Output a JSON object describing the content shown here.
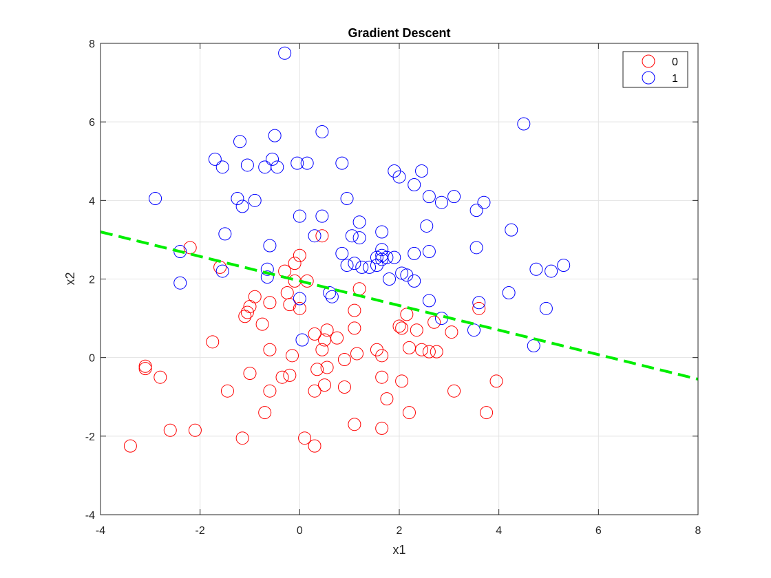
{
  "chart_data": {
    "type": "scatter",
    "title": "Gradient Descent",
    "xlabel": "x1",
    "ylabel": "x2",
    "xlim": [
      -4,
      8
    ],
    "ylim": [
      -4,
      8
    ],
    "xticks": [
      "-4",
      "-2",
      "0",
      "2",
      "4",
      "6",
      "8"
    ],
    "yticks": [
      "-4",
      "-2",
      "0",
      "2",
      "4",
      "6",
      "8"
    ],
    "grid": true,
    "legend_position": "top-right",
    "series": [
      {
        "name": "0",
        "color": "#ff0000",
        "marker": "circle",
        "points": [
          [
            -2.2,
            2.8
          ],
          [
            -1.6,
            2.3
          ],
          [
            -0.3,
            2.2
          ],
          [
            -0.1,
            2.4
          ],
          [
            0.0,
            2.6
          ],
          [
            0.45,
            3.1
          ],
          [
            -0.1,
            1.95
          ],
          [
            0.15,
            1.95
          ],
          [
            -0.25,
            1.65
          ],
          [
            -0.9,
            1.55
          ],
          [
            -0.6,
            1.4
          ],
          [
            -0.2,
            1.35
          ],
          [
            0.0,
            1.25
          ],
          [
            -1.0,
            1.3
          ],
          [
            -1.05,
            1.15
          ],
          [
            -1.1,
            1.05
          ],
          [
            -0.75,
            0.85
          ],
          [
            1.1,
            1.2
          ],
          [
            1.2,
            1.75
          ],
          [
            2.15,
            1.1
          ],
          [
            3.6,
            1.25
          ],
          [
            2.0,
            0.8
          ],
          [
            2.05,
            0.75
          ],
          [
            2.35,
            0.7
          ],
          [
            2.7,
            0.9
          ],
          [
            3.05,
            0.65
          ],
          [
            1.1,
            0.75
          ],
          [
            0.55,
            0.7
          ],
          [
            0.3,
            0.6
          ],
          [
            0.75,
            0.5
          ],
          [
            0.5,
            0.45
          ],
          [
            0.45,
            0.2
          ],
          [
            -1.75,
            0.4
          ],
          [
            -0.6,
            0.2
          ],
          [
            -0.15,
            0.05
          ],
          [
            0.9,
            -0.05
          ],
          [
            1.15,
            0.1
          ],
          [
            1.55,
            0.2
          ],
          [
            1.65,
            0.05
          ],
          [
            2.2,
            0.25
          ],
          [
            2.45,
            0.2
          ],
          [
            2.6,
            0.15
          ],
          [
            2.75,
            0.15
          ],
          [
            0.55,
            -0.25
          ],
          [
            0.35,
            -0.3
          ],
          [
            -1.0,
            -0.4
          ],
          [
            -0.35,
            -0.5
          ],
          [
            -0.2,
            -0.45
          ],
          [
            -3.1,
            -0.22
          ],
          [
            -3.1,
            -0.28
          ],
          [
            -2.8,
            -0.5
          ],
          [
            1.65,
            -0.5
          ],
          [
            2.05,
            -0.6
          ],
          [
            3.95,
            -0.6
          ],
          [
            0.5,
            -0.7
          ],
          [
            0.9,
            -0.75
          ],
          [
            -1.45,
            -0.85
          ],
          [
            -0.6,
            -0.85
          ],
          [
            0.3,
            -0.85
          ],
          [
            3.1,
            -0.85
          ],
          [
            1.75,
            -1.05
          ],
          [
            -0.7,
            -1.4
          ],
          [
            2.2,
            -1.4
          ],
          [
            3.75,
            -1.4
          ],
          [
            1.1,
            -1.7
          ],
          [
            1.65,
            -1.8
          ],
          [
            -2.6,
            -1.85
          ],
          [
            -2.1,
            -1.85
          ],
          [
            -1.15,
            -2.05
          ],
          [
            0.1,
            -2.05
          ],
          [
            -3.4,
            -2.25
          ],
          [
            0.3,
            -2.25
          ]
        ]
      },
      {
        "name": "1",
        "color": "#0000ff",
        "marker": "circle",
        "points": [
          [
            -0.3,
            7.75
          ],
          [
            4.5,
            5.95
          ],
          [
            0.45,
            5.75
          ],
          [
            -0.5,
            5.65
          ],
          [
            -1.2,
            5.5
          ],
          [
            -1.7,
            5.05
          ],
          [
            -0.55,
            5.05
          ],
          [
            -1.55,
            4.85
          ],
          [
            -1.05,
            4.9
          ],
          [
            -0.7,
            4.85
          ],
          [
            -0.45,
            4.85
          ],
          [
            -0.05,
            4.95
          ],
          [
            0.15,
            4.95
          ],
          [
            0.85,
            4.95
          ],
          [
            1.9,
            4.75
          ],
          [
            2.45,
            4.75
          ],
          [
            2.0,
            4.6
          ],
          [
            2.3,
            4.4
          ],
          [
            -2.9,
            4.05
          ],
          [
            -1.25,
            4.05
          ],
          [
            -0.9,
            4.0
          ],
          [
            -1.15,
            3.85
          ],
          [
            0.95,
            4.05
          ],
          [
            2.6,
            4.1
          ],
          [
            2.85,
            3.95
          ],
          [
            3.1,
            4.1
          ],
          [
            3.7,
            3.95
          ],
          [
            3.55,
            3.75
          ],
          [
            0.0,
            3.6
          ],
          [
            0.45,
            3.6
          ],
          [
            1.2,
            3.45
          ],
          [
            2.55,
            3.35
          ],
          [
            4.25,
            3.25
          ],
          [
            -1.5,
            3.15
          ],
          [
            0.3,
            3.1
          ],
          [
            1.05,
            3.1
          ],
          [
            1.2,
            3.05
          ],
          [
            1.65,
            3.2
          ],
          [
            -0.6,
            2.85
          ],
          [
            3.55,
            2.8
          ],
          [
            2.6,
            2.7
          ],
          [
            2.3,
            2.65
          ],
          [
            1.65,
            2.75
          ],
          [
            1.65,
            2.6
          ],
          [
            1.65,
            2.5
          ],
          [
            1.55,
            2.55
          ],
          [
            1.75,
            2.55
          ],
          [
            1.9,
            2.55
          ],
          [
            0.85,
            2.65
          ],
          [
            1.55,
            2.35
          ],
          [
            1.4,
            2.3
          ],
          [
            1.25,
            2.3
          ],
          [
            1.1,
            2.4
          ],
          [
            0.95,
            2.35
          ],
          [
            -2.4,
            2.7
          ],
          [
            -1.55,
            2.2
          ],
          [
            -0.65,
            2.25
          ],
          [
            -0.65,
            2.05
          ],
          [
            4.75,
            2.25
          ],
          [
            5.05,
            2.2
          ],
          [
            5.3,
            2.35
          ],
          [
            1.8,
            2.0
          ],
          [
            2.05,
            2.15
          ],
          [
            2.15,
            2.1
          ],
          [
            2.3,
            1.95
          ],
          [
            -2.4,
            1.9
          ],
          [
            0.6,
            1.65
          ],
          [
            0.65,
            1.55
          ],
          [
            0.0,
            1.5
          ],
          [
            4.2,
            1.65
          ],
          [
            2.6,
            1.45
          ],
          [
            3.6,
            1.4
          ],
          [
            4.95,
            1.25
          ],
          [
            2.85,
            1.0
          ],
          [
            3.5,
            0.7
          ],
          [
            0.05,
            0.45
          ],
          [
            4.7,
            0.3
          ]
        ]
      }
    ],
    "decision_boundary": {
      "style": "dashed",
      "color": "#00ee00",
      "x": [
        -4,
        8
      ],
      "y": [
        3.2,
        -0.55
      ]
    }
  }
}
